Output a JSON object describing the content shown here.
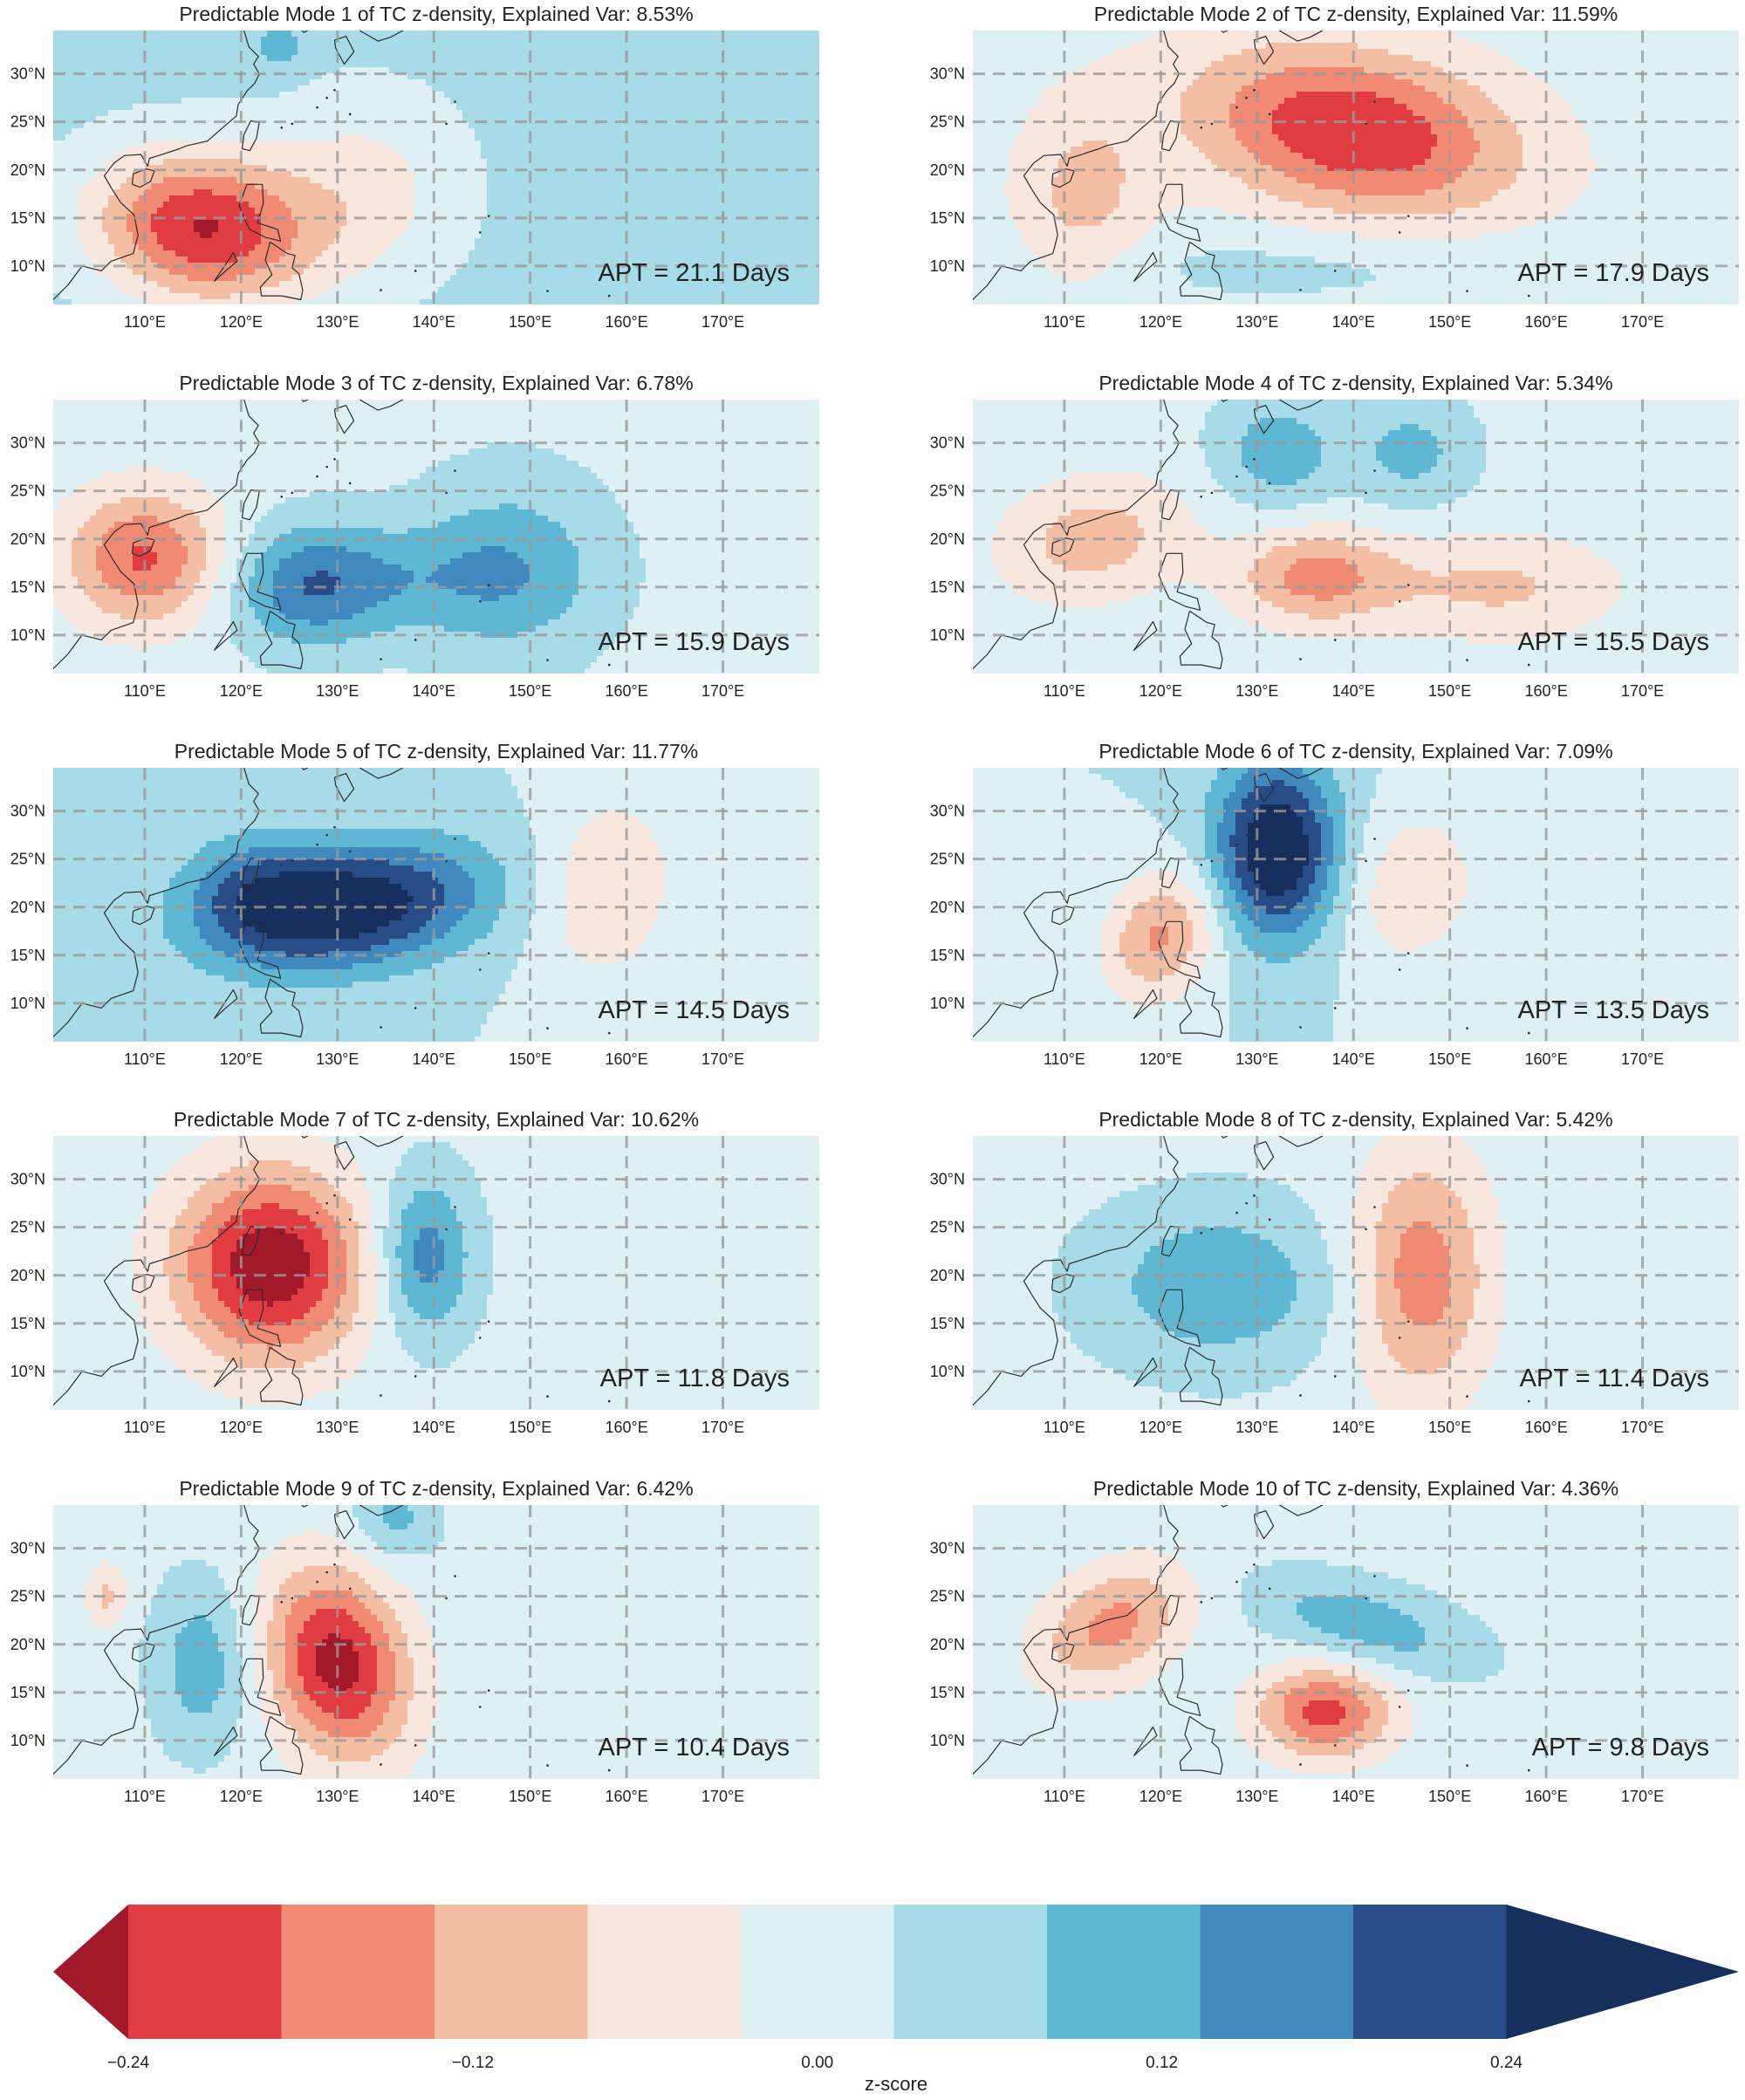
{
  "chart_data": {
    "type": "heatmap",
    "figure_kind": "contour maps",
    "lon_ticks": [
      110,
      120,
      130,
      140,
      150,
      160,
      170
    ],
    "lat_ticks": [
      10,
      15,
      20,
      25,
      30
    ],
    "lon_tick_labels": [
      "110°E",
      "120°E",
      "130°E",
      "140°E",
      "150°E",
      "160°E",
      "170°E"
    ],
    "lat_tick_labels": [
      "10°N",
      "15°N",
      "20°N",
      "25°N",
      "30°N"
    ],
    "xlim": [
      100.5,
      180
    ],
    "ylim": [
      6,
      34.5
    ],
    "grid": true,
    "contour_levels": [
      -0.3,
      -0.24,
      -0.18,
      -0.12,
      -0.06,
      0.0,
      0.06,
      0.12,
      0.18,
      0.24,
      0.3
    ],
    "palette": [
      "#a1192a",
      "#e13c41",
      "#f08a73",
      "#f4bea5",
      "#f7e7de",
      "#dff0f4",
      "#a7dbe8",
      "#5fb8d3",
      "#3f89bf",
      "#274c87",
      "#172f5c"
    ],
    "panels": [
      {
        "title": "Predictable Mode 1 of TC z-density, Explained Var: 8.53%",
        "apt": "APT = 21.1 Days",
        "background": 0.02,
        "blobs": [
          {
            "lon": 116,
            "lat": 14,
            "amp": -0.32,
            "sx": 8,
            "sy": 5.5,
            "rot": -8
          },
          {
            "lon": 133,
            "lat": 18,
            "amp": -0.1,
            "sx": 7,
            "sy": 7,
            "rot": 0
          },
          {
            "lon": 124,
            "lat": 33,
            "amp": 0.07,
            "sx": 2,
            "sy": 2,
            "rot": 0
          }
        ]
      },
      {
        "title": "Predictable Mode 2 of TC z-density, Explained Var: 11.59%",
        "apt": "APT = 17.9 Days",
        "background": -0.03,
        "blobs": [
          {
            "lon": 140,
            "lat": 24,
            "amp": -0.27,
            "sx": 12,
            "sy": 6,
            "rot": -10
          },
          {
            "lon": 112,
            "lat": 17,
            "amp": -0.11,
            "sx": 5,
            "sy": 7,
            "rot": 0
          },
          {
            "lon": 135,
            "lat": 10,
            "amp": 0.05,
            "sx": 20,
            "sy": 3,
            "rot": 0
          }
        ]
      },
      {
        "title": "Predictable Mode 3 of TC z-density, Explained Var: 6.78%",
        "apt": "APT = 15.9 Days",
        "background": -0.02,
        "blobs": [
          {
            "lon": 110,
            "lat": 18,
            "amp": -0.23,
            "sx": 6,
            "sy": 5,
            "rot": 0
          },
          {
            "lon": 127,
            "lat": 15,
            "amp": 0.17,
            "sx": 6,
            "sy": 4.5,
            "rot": 0
          },
          {
            "lon": 148,
            "lat": 17,
            "amp": 0.11,
            "sx": 7,
            "sy": 7,
            "rot": 0
          },
          {
            "lon": 138,
            "lat": 16,
            "amp": 0.07,
            "sx": 10,
            "sy": 4,
            "rot": 0
          }
        ]
      },
      {
        "title": "Predictable Mode 4 of TC z-density, Explained Var: 5.34%",
        "apt": "APT = 15.5 Days",
        "background": -0.02,
        "blobs": [
          {
            "lon": 136,
            "lat": 16,
            "amp": -0.18,
            "sx": 6,
            "sy": 3.5,
            "rot": 0
          },
          {
            "lon": 155,
            "lat": 15,
            "amp": -0.11,
            "sx": 9,
            "sy": 4,
            "rot": 0
          },
          {
            "lon": 113,
            "lat": 20,
            "amp": -0.13,
            "sx": 7,
            "sy": 4.5,
            "rot": 10
          },
          {
            "lon": 132,
            "lat": 29,
            "amp": 0.12,
            "sx": 4.5,
            "sy": 4,
            "rot": 0
          },
          {
            "lon": 146,
            "lat": 29,
            "amp": 0.1,
            "sx": 4.5,
            "sy": 4,
            "rot": 0
          }
        ]
      },
      {
        "title": "Predictable Mode 5 of TC z-density, Explained Var: 11.77%",
        "apt": "APT = 14.5 Days",
        "background": 0.0,
        "blobs": [
          {
            "lon": 131,
            "lat": 20,
            "amp": 0.3,
            "sx": 10,
            "sy": 4.5,
            "rot": 8
          },
          {
            "lon": 121,
            "lat": 22,
            "amp": 0.11,
            "sx": 5,
            "sy": 4,
            "rot": 0
          },
          {
            "lon": 158,
            "lat": 22,
            "amp": -0.12,
            "sx": 5,
            "sy": 7,
            "rot": -10
          }
        ]
      },
      {
        "title": "Predictable Mode 6 of TC z-density, Explained Var: 7.09%",
        "apt": "APT = 13.5 Days",
        "background": 0.0,
        "blobs": [
          {
            "lon": 132,
            "lat": 26,
            "amp": 0.32,
            "sx": 4.5,
            "sy": 6.5,
            "rot": 0
          },
          {
            "lon": 120,
            "lat": 17,
            "amp": -0.19,
            "sx": 4,
            "sy": 5,
            "rot": -30
          },
          {
            "lon": 146,
            "lat": 22,
            "amp": -0.11,
            "sx": 5,
            "sy": 6,
            "rot": -20
          }
        ]
      },
      {
        "title": "Predictable Mode 7 of TC z-density, Explained Var: 10.62%",
        "apt": "APT = 11.8 Days",
        "background": -0.02,
        "blobs": [
          {
            "lon": 123,
            "lat": 21,
            "amp": -0.33,
            "sx": 7,
            "sy": 7,
            "rot": -30
          },
          {
            "lon": 139,
            "lat": 22,
            "amp": 0.18,
            "sx": 3.5,
            "sy": 6,
            "rot": 0
          }
        ]
      },
      {
        "title": "Predictable Mode 8 of TC z-density, Explained Var: 5.42%",
        "apt": "APT = 11.4 Days",
        "background": -0.02,
        "blobs": [
          {
            "lon": 147,
            "lat": 20,
            "amp": -0.2,
            "sx": 5,
            "sy": 9,
            "rot": 0
          },
          {
            "lon": 126,
            "lat": 19,
            "amp": 0.13,
            "sx": 9,
            "sy": 6,
            "rot": 0
          }
        ]
      },
      {
        "title": "Predictable Mode 9 of TC z-density, Explained Var: 6.42%",
        "apt": "APT = 10.4 Days",
        "background": -0.02,
        "blobs": [
          {
            "lon": 130,
            "lat": 18,
            "amp": -0.31,
            "sx": 5,
            "sy": 7,
            "rot": 15
          },
          {
            "lon": 116,
            "lat": 18,
            "amp": 0.12,
            "sx": 3.5,
            "sy": 6,
            "rot": 0
          },
          {
            "lon": 106,
            "lat": 25,
            "amp": -0.11,
            "sx": 1.5,
            "sy": 2.5,
            "rot": 0
          },
          {
            "lon": 136,
            "lat": 33,
            "amp": 0.1,
            "sx": 3,
            "sy": 3,
            "rot": 0
          }
        ]
      },
      {
        "title": "Predictable Mode 10 of TC z-density, Explained Var: 4.36%",
        "apt": "APT = 9.8 Days",
        "background": -0.02,
        "blobs": [
          {
            "lon": 137,
            "lat": 13,
            "amp": -0.24,
            "sx": 5,
            "sy": 3.5,
            "rot": 0
          },
          {
            "lon": 115,
            "lat": 22,
            "amp": -0.18,
            "sx": 6,
            "sy": 4,
            "rot": 30
          },
          {
            "lon": 141,
            "lat": 22,
            "amp": 0.12,
            "sx": 8,
            "sy": 3,
            "rot": -15
          }
        ]
      }
    ],
    "colorbar": {
      "label": "z-score",
      "ticks": [
        -0.24,
        -0.12,
        0.0,
        0.12,
        0.24
      ],
      "tick_labels": [
        "−0.24",
        "−0.12",
        "0.00",
        "0.12",
        "0.24"
      ],
      "extend": "both"
    }
  }
}
